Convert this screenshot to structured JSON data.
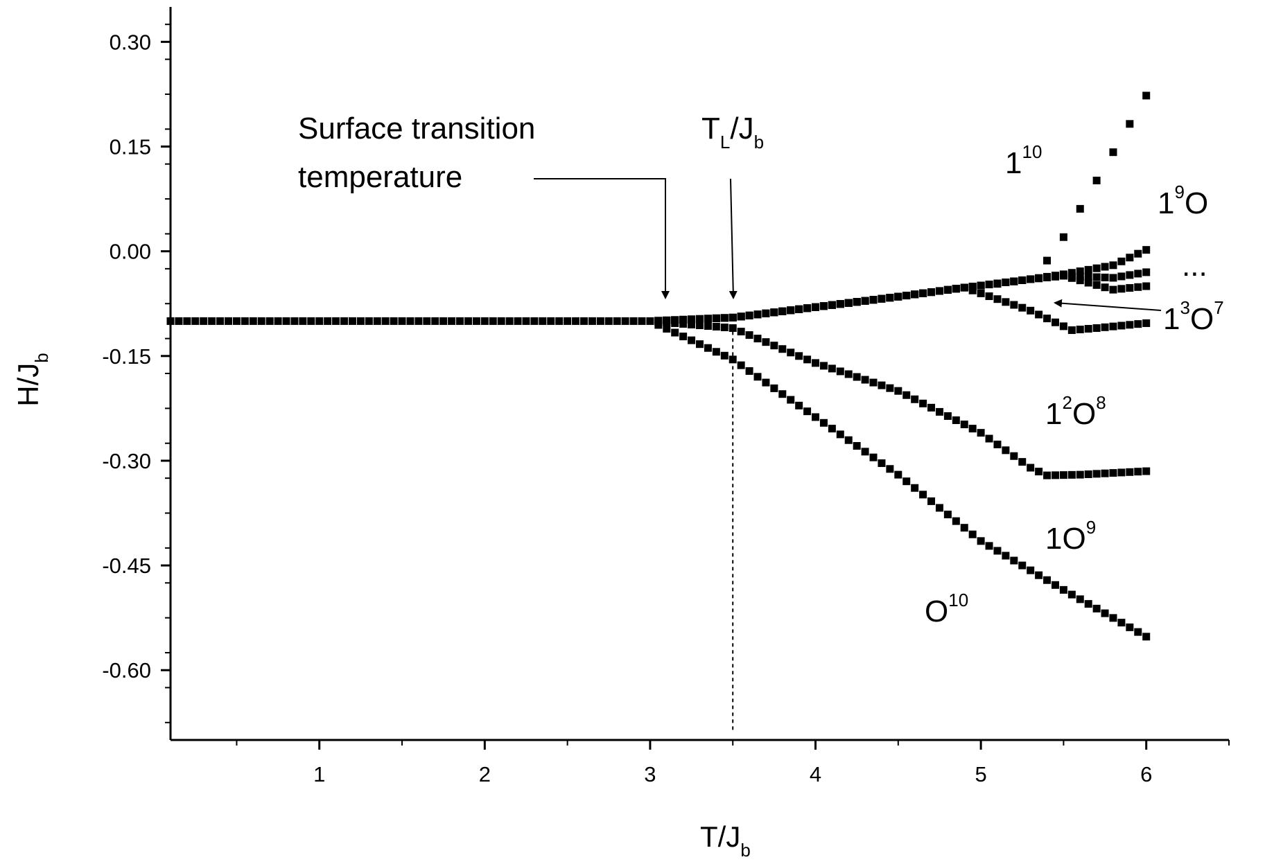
{
  "chart_data": {
    "type": "scatter",
    "xlabel": "T/J",
    "xlabel_sub": "b",
    "ylabel": "H/J",
    "ylabel_sub": "b",
    "xlim": [
      0.1,
      6.5
    ],
    "ylim": [
      -0.7,
      0.35
    ],
    "x_ticks": [
      "1",
      "2",
      "3",
      "4",
      "5",
      "6"
    ],
    "y_ticks": [
      "0.30",
      "0.15",
      "0.00",
      "-0.15",
      "-0.30",
      "-0.45",
      "-0.60"
    ],
    "colors": {
      "markers": "#000000",
      "axes": "#000000"
    },
    "marker": "square",
    "dashed_line_x": 3.5,
    "common_curve": {
      "x": [
        0.1,
        3.0
      ],
      "y": [
        -0.1,
        -0.1
      ],
      "step": 0.05
    },
    "series": [
      {
        "name": "O10",
        "points": [
          [
            3.0,
            -0.1
          ],
          [
            3.5,
            -0.155
          ],
          [
            4.5,
            -0.32
          ],
          [
            5.0,
            -0.415
          ],
          [
            5.5,
            -0.485
          ],
          [
            6.0,
            -0.552
          ]
        ]
      },
      {
        "name": "1O9",
        "points": [
          [
            3.0,
            -0.1
          ],
          [
            3.5,
            -0.11
          ],
          [
            4.0,
            -0.16
          ],
          [
            4.5,
            -0.2
          ],
          [
            5.0,
            -0.26
          ],
          [
            5.3,
            -0.31
          ],
          [
            5.4,
            -0.321
          ],
          [
            5.6,
            -0.32
          ],
          [
            6.0,
            -0.315
          ]
        ]
      },
      {
        "name": "1^2O^8",
        "points": [
          [
            3.0,
            -0.1
          ],
          [
            3.5,
            -0.095
          ],
          [
            4.0,
            -0.08
          ],
          [
            4.5,
            -0.065
          ],
          [
            4.9,
            -0.052
          ],
          [
            5.3,
            -0.085
          ],
          [
            5.55,
            -0.113
          ],
          [
            5.7,
            -0.11
          ],
          [
            6.0,
            -0.103
          ]
        ]
      },
      {
        "name": "1^3O^7",
        "points": [
          [
            3.0,
            -0.1
          ],
          [
            3.5,
            -0.095
          ],
          [
            4.0,
            -0.08
          ],
          [
            4.5,
            -0.065
          ],
          [
            4.9,
            -0.052
          ],
          [
            5.3,
            -0.04
          ],
          [
            5.5,
            -0.035
          ],
          [
            5.8,
            -0.055
          ],
          [
            6.0,
            -0.05
          ]
        ]
      },
      {
        "name": "...",
        "points": [
          [
            3.0,
            -0.1
          ],
          [
            3.5,
            -0.095
          ],
          [
            4.0,
            -0.08
          ],
          [
            4.5,
            -0.065
          ],
          [
            4.9,
            -0.052
          ],
          [
            5.3,
            -0.04
          ],
          [
            5.5,
            -0.035
          ],
          [
            5.8,
            -0.038
          ],
          [
            6.0,
            -0.03
          ]
        ]
      },
      {
        "name": "1^9O",
        "points": [
          [
            3.0,
            -0.1
          ],
          [
            3.5,
            -0.095
          ],
          [
            4.0,
            -0.08
          ],
          [
            4.5,
            -0.065
          ],
          [
            4.9,
            -0.052
          ],
          [
            5.3,
            -0.04
          ],
          [
            5.5,
            -0.033
          ],
          [
            5.8,
            -0.02
          ],
          [
            6.0,
            0.002
          ]
        ]
      },
      {
        "name": "1^10",
        "points": [
          [
            5.0,
            -0.05
          ],
          [
            5.3,
            -0.04
          ],
          [
            5.45,
            0.0
          ],
          [
            6.0,
            0.223
          ]
        ]
      }
    ],
    "annotations": [
      {
        "text": "Surface transition",
        "text2": "temperature",
        "arrow_x": 3.1,
        "arrow_y": -0.07
      },
      {
        "text": "T",
        "sub": "L",
        "text2": "/J",
        "sub2": "b",
        "arrow_x": 3.5,
        "arrow_y": -0.067
      }
    ],
    "curve_labels": [
      {
        "base": "1",
        "sup": "10"
      },
      {
        "base": "1",
        "sup": "9",
        "tail": "O"
      },
      {
        "base": "...",
        "sup": ""
      },
      {
        "base": "1",
        "sup": "3",
        "tail": "O",
        "sup2": "7",
        "arrow_x": 5.45,
        "arrow_y": -0.075
      },
      {
        "base": "1",
        "sup": "2",
        "tail": "O",
        "sup2": "8"
      },
      {
        "base": "1O",
        "sup": "9"
      },
      {
        "base": "O",
        "sup": "10"
      }
    ]
  }
}
